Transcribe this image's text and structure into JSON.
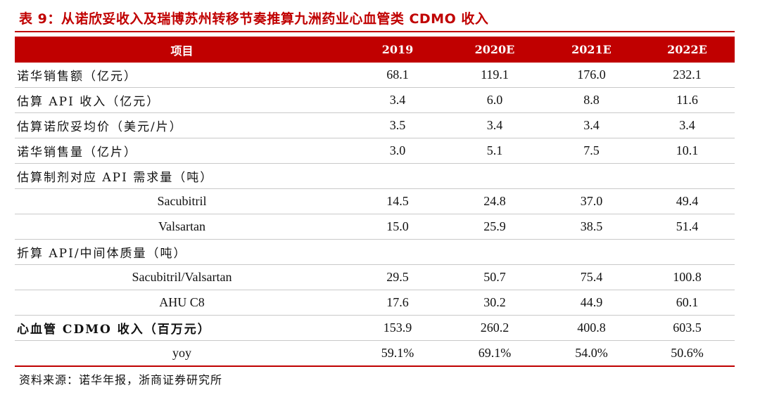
{
  "title": "表 9：从诺欣妥收入及瑞博苏州转移节奏推算九洲药业心血管类 CDMO 收入",
  "table": {
    "headers": [
      "项目",
      "2019",
      "2020E",
      "2021E",
      "2022E"
    ],
    "rows": [
      {
        "label": "诺华销售额（亿元）",
        "values": [
          "68.1",
          "119.1",
          "176.0",
          "232.1"
        ]
      },
      {
        "label": "估算 API 收入（亿元）",
        "values": [
          "3.4",
          "6.0",
          "8.8",
          "11.6"
        ]
      },
      {
        "label": "估算诺欣妥均价（美元/片）",
        "values": [
          "3.5",
          "3.4",
          "3.4",
          "3.4"
        ]
      },
      {
        "label": "诺华销售量（亿片）",
        "values": [
          "3.0",
          "5.1",
          "7.5",
          "10.1"
        ]
      },
      {
        "label": "估算制剂对应 API 需求量（吨）",
        "values": [
          "",
          "",
          "",
          ""
        ]
      },
      {
        "label": "Sacubitril",
        "values": [
          "14.5",
          "24.8",
          "37.0",
          "49.4"
        ]
      },
      {
        "label": "Valsartan",
        "values": [
          "15.0",
          "25.9",
          "38.5",
          "51.4"
        ]
      },
      {
        "label": "折算 API/中间体质量（吨）",
        "values": [
          "",
          "",
          "",
          ""
        ]
      },
      {
        "label": "Sacubitril/Valsartan",
        "values": [
          "29.5",
          "50.7",
          "75.4",
          "100.8"
        ]
      },
      {
        "label": "AHU C8",
        "values": [
          "17.6",
          "30.2",
          "44.9",
          "60.1"
        ]
      },
      {
        "label": "心血管 CDMO 收入（百万元）",
        "values": [
          "153.9",
          "260.2",
          "400.8",
          "603.5"
        ]
      },
      {
        "label": "yoy",
        "values": [
          "59.1%",
          "69.1%",
          "54.0%",
          "50.6%"
        ]
      }
    ]
  },
  "source": "资料来源：诺华年报，浙商证券研究所"
}
